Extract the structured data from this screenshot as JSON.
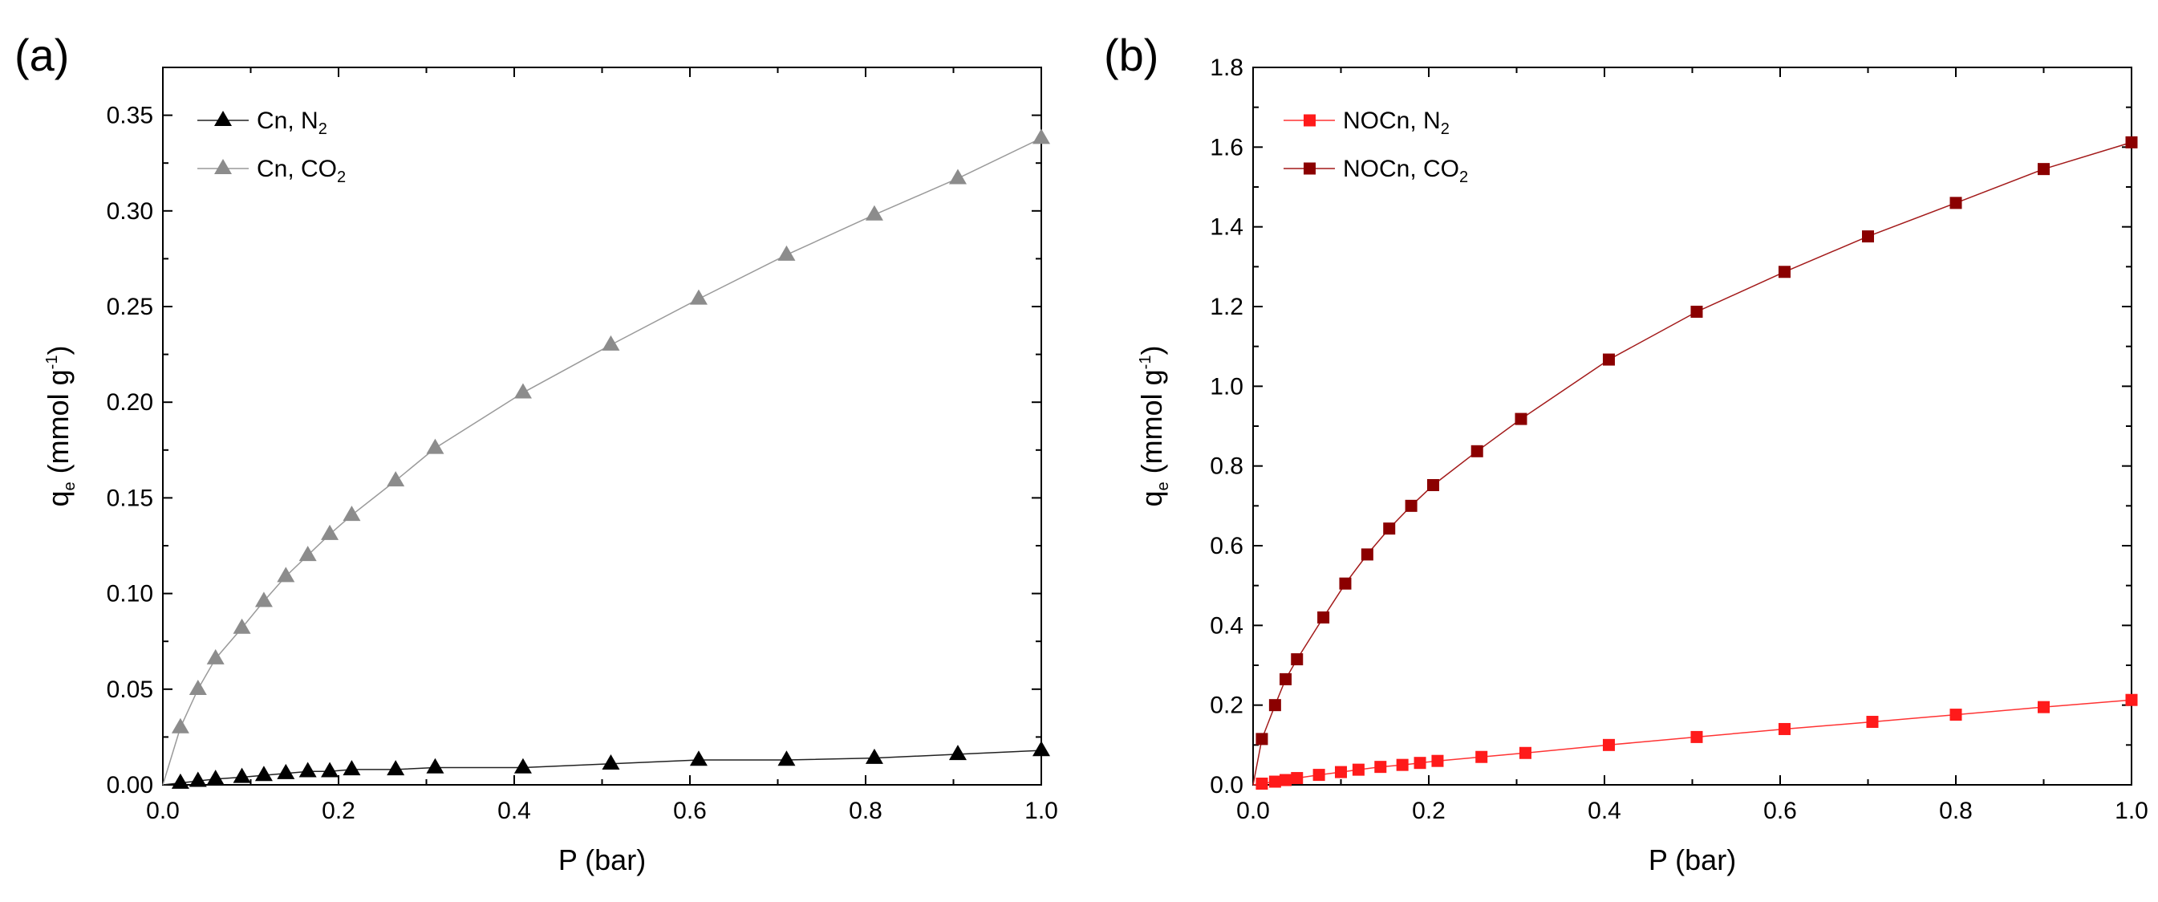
{
  "chart_data": [
    {
      "type": "line",
      "panel_label": "(a)",
      "xlabel": "P (bar)",
      "ylabel_main": "q",
      "ylabel_sub": "e",
      "ylabel_rest": " (mmol g",
      "ylabel_sup": "-1",
      "ylabel_end": ")",
      "xlim": [
        0.0,
        1.0
      ],
      "ylim": [
        0.0,
        0.375
      ],
      "xticks": [
        "0.0",
        "0.2",
        "0.4",
        "0.6",
        "0.8",
        "1.0"
      ],
      "yticks": [
        "0.00",
        "0.05",
        "0.10",
        "0.15",
        "0.20",
        "0.25",
        "0.30",
        "0.35"
      ],
      "legend_position": "top-left",
      "series": [
        {
          "name": "Cn, N2",
          "legend_main": "Cn, N",
          "legend_sub": "2",
          "marker": "triangle",
          "color": "#000000",
          "line_color": "#222222",
          "x": [
            0.0,
            0.02,
            0.04,
            0.06,
            0.09,
            0.115,
            0.14,
            0.165,
            0.19,
            0.215,
            0.265,
            0.31,
            0.41,
            0.51,
            0.61,
            0.71,
            0.81,
            0.905,
            1.0
          ],
          "y": [
            0.0,
            0.001,
            0.002,
            0.003,
            0.004,
            0.005,
            0.006,
            0.007,
            0.007,
            0.008,
            0.008,
            0.009,
            0.009,
            0.011,
            0.013,
            0.013,
            0.014,
            0.016,
            0.018
          ]
        },
        {
          "name": "Cn, CO2",
          "legend_main": "Cn, CO",
          "legend_sub": "2",
          "marker": "triangle",
          "color": "#8c8c8c",
          "line_color": "#9a9a9a",
          "x": [
            0.0,
            0.02,
            0.04,
            0.06,
            0.09,
            0.115,
            0.14,
            0.165,
            0.19,
            0.215,
            0.265,
            0.31,
            0.41,
            0.51,
            0.61,
            0.71,
            0.81,
            0.905,
            1.0
          ],
          "y": [
            0.0,
            0.03,
            0.05,
            0.066,
            0.082,
            0.096,
            0.109,
            0.12,
            0.131,
            0.141,
            0.159,
            0.176,
            0.205,
            0.23,
            0.254,
            0.277,
            0.298,
            0.317,
            0.338
          ]
        }
      ]
    },
    {
      "type": "line",
      "panel_label": "(b)",
      "xlabel": "P (bar)",
      "ylabel_main": "q",
      "ylabel_sub": "e",
      "ylabel_rest": " (mmol g",
      "ylabel_sup": "-1",
      "ylabel_end": ")",
      "xlim": [
        0.0,
        1.0
      ],
      "ylim": [
        0.0,
        1.8
      ],
      "xticks": [
        "0.0",
        "0.2",
        "0.4",
        "0.6",
        "0.8",
        "1.0"
      ],
      "yticks": [
        "0.0",
        "0.2",
        "0.4",
        "0.6",
        "0.8",
        "1.0",
        "1.2",
        "1.4",
        "1.6",
        "1.8"
      ],
      "legend_position": "top-left",
      "series": [
        {
          "name": "NOCn, N2",
          "legend_main": "NOCn, N",
          "legend_sub": "2",
          "marker": "square",
          "color": "#ff1a1a",
          "line_color": "#ff3333",
          "x": [
            0.0,
            0.01,
            0.025,
            0.037,
            0.05,
            0.075,
            0.1,
            0.12,
            0.145,
            0.17,
            0.19,
            0.21,
            0.26,
            0.31,
            0.405,
            0.505,
            0.605,
            0.705,
            0.8,
            0.9,
            1.0
          ],
          "y": [
            0.0,
            0.003,
            0.008,
            0.012,
            0.017,
            0.025,
            0.032,
            0.038,
            0.045,
            0.05,
            0.055,
            0.06,
            0.07,
            0.08,
            0.1,
            0.12,
            0.14,
            0.158,
            0.176,
            0.195,
            0.213
          ]
        },
        {
          "name": "NOCn, CO2",
          "legend_main": "NOCn, CO",
          "legend_sub": "2",
          "marker": "square",
          "color": "#8b0000",
          "line_color": "#a31a1a",
          "x": [
            0.0,
            0.01,
            0.025,
            0.037,
            0.05,
            0.08,
            0.105,
            0.13,
            0.155,
            0.18,
            0.205,
            0.255,
            0.305,
            0.405,
            0.505,
            0.605,
            0.7,
            0.8,
            0.9,
            1.0
          ],
          "y": [
            0.0,
            0.115,
            0.2,
            0.265,
            0.315,
            0.42,
            0.505,
            0.578,
            0.643,
            0.7,
            0.752,
            0.837,
            0.918,
            1.067,
            1.187,
            1.287,
            1.376,
            1.46,
            1.545,
            1.612
          ]
        }
      ]
    }
  ]
}
